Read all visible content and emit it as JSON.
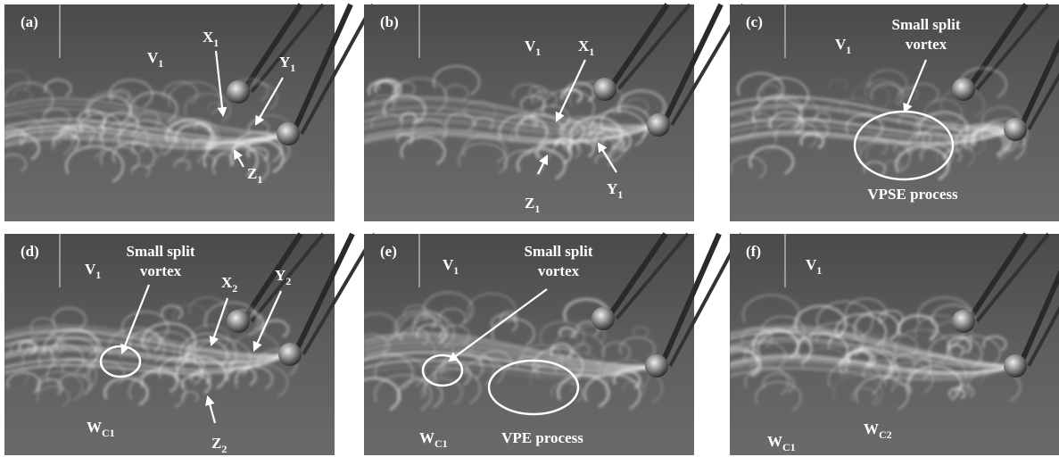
{
  "panels": [
    {
      "label": "(a)",
      "annotations": [
        {
          "main": "V",
          "sub": "1"
        },
        {
          "main": "X",
          "sub": "1"
        },
        {
          "main": "Y",
          "sub": "1"
        },
        {
          "main": "Z",
          "sub": "1"
        }
      ]
    },
    {
      "label": "(b)",
      "annotations": [
        {
          "main": "V",
          "sub": "1"
        },
        {
          "main": "X",
          "sub": "1"
        },
        {
          "main": "Y",
          "sub": "1"
        },
        {
          "main": "Z",
          "sub": "1"
        }
      ]
    },
    {
      "label": "(c)",
      "annotations": [
        {
          "main": "V",
          "sub": "1"
        },
        {
          "lines": [
            "Small split",
            "vortex"
          ]
        },
        {
          "lines": [
            "VPSE process"
          ]
        }
      ]
    },
    {
      "label": "(d)",
      "annotations": [
        {
          "main": "V",
          "sub": "1"
        },
        {
          "lines": [
            "Small split",
            "vortex"
          ]
        },
        {
          "main": "X",
          "sub": "2"
        },
        {
          "main": "Y",
          "sub": "2"
        },
        {
          "main": "Z",
          "sub": "2"
        },
        {
          "main": "W",
          "sub": "C1"
        }
      ]
    },
    {
      "label": "(e)",
      "annotations": [
        {
          "main": "V",
          "sub": "1"
        },
        {
          "lines": [
            "Small split",
            "vortex"
          ]
        },
        {
          "main": "W",
          "sub": "C1"
        },
        {
          "lines": [
            "VPE process"
          ]
        }
      ]
    },
    {
      "label": "(f)",
      "annotations": [
        {
          "main": "V",
          "sub": "1"
        },
        {
          "main": "W",
          "sub": "C1"
        },
        {
          "main": "W",
          "sub": "C2"
        }
      ]
    }
  ]
}
